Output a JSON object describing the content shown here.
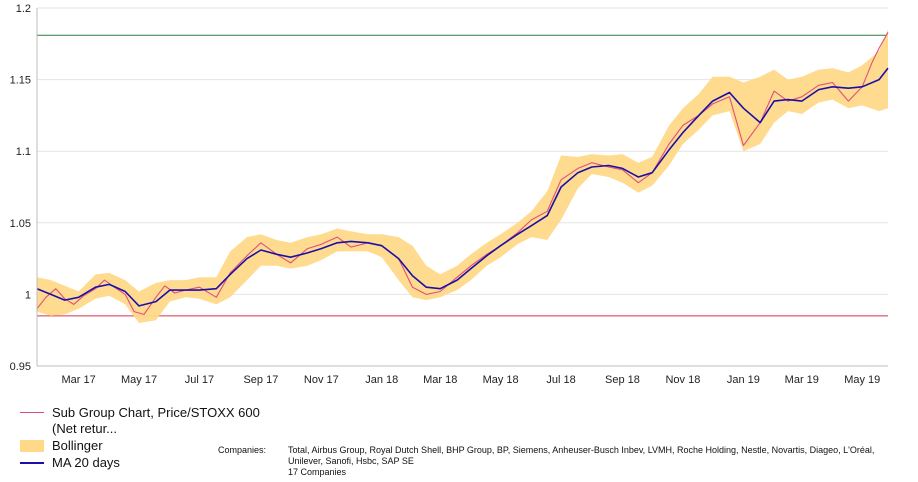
{
  "chart_data": {
    "type": "line",
    "title": "",
    "xlabel": "",
    "ylabel": "",
    "ylim": [
      0.95,
      1.2
    ],
    "xlim": [
      "2017-02-01",
      "2019-06-10"
    ],
    "yticks": [
      {
        "value": 0.95,
        "label": "0.95"
      },
      {
        "value": 1.0,
        "label": "1"
      },
      {
        "value": 1.05,
        "label": "1.05"
      },
      {
        "value": 1.1,
        "label": "1.1"
      },
      {
        "value": 1.15,
        "label": "1.15"
      },
      {
        "value": 1.2,
        "label": "1.2"
      }
    ],
    "xticks": [
      {
        "date": "2017-03-15",
        "label": "Mar 17"
      },
      {
        "date": "2017-05-15",
        "label": "May 17"
      },
      {
        "date": "2017-07-15",
        "label": "Jul 17"
      },
      {
        "date": "2017-09-15",
        "label": "Sep 17"
      },
      {
        "date": "2017-11-15",
        "label": "Nov 17"
      },
      {
        "date": "2018-01-15",
        "label": "Jan 18"
      },
      {
        "date": "2018-03-15",
        "label": "Mar 18"
      },
      {
        "date": "2018-05-15",
        "label": "May 18"
      },
      {
        "date": "2018-07-15",
        "label": "Jul 18"
      },
      {
        "date": "2018-09-15",
        "label": "Sep 18"
      },
      {
        "date": "2018-11-15",
        "label": "Nov 18"
      },
      {
        "date": "2019-01-15",
        "label": "Jan 19"
      },
      {
        "date": "2019-03-15",
        "label": "Mar 19"
      },
      {
        "date": "2019-05-15",
        "label": "May 19"
      }
    ],
    "grid": true,
    "reference_lines": [
      {
        "value": 1.181,
        "color": "#2e7d3a"
      },
      {
        "value": 0.985,
        "color": "#d9304a"
      }
    ],
    "series": [
      {
        "name": "Sub Group Chart, Price/STOXX 600 (Net retur...",
        "legend_label": "Sub Group Chart, Price/STOXX 600 (Net retur...",
        "color": "#e0507a",
        "type": "line",
        "points": [
          [
            "2017-02-01",
            0.99
          ],
          [
            "2017-02-10",
            0.998
          ],
          [
            "2017-02-20",
            1.004
          ],
          [
            "2017-03-01",
            0.997
          ],
          [
            "2017-03-10",
            0.993
          ],
          [
            "2017-03-20",
            0.999
          ],
          [
            "2017-04-01",
            1.004
          ],
          [
            "2017-04-10",
            1.01
          ],
          [
            "2017-04-20",
            1.005
          ],
          [
            "2017-05-01",
            1.0
          ],
          [
            "2017-05-10",
            0.988
          ],
          [
            "2017-05-20",
            0.986
          ],
          [
            "2017-06-01",
            0.998
          ],
          [
            "2017-06-10",
            1.006
          ],
          [
            "2017-06-20",
            1.001
          ],
          [
            "2017-07-01",
            1.003
          ],
          [
            "2017-07-15",
            1.005
          ],
          [
            "2017-08-01",
            0.998
          ],
          [
            "2017-08-15",
            1.015
          ],
          [
            "2017-09-01",
            1.027
          ],
          [
            "2017-09-15",
            1.036
          ],
          [
            "2017-10-01",
            1.028
          ],
          [
            "2017-10-15",
            1.022
          ],
          [
            "2017-11-01",
            1.032
          ],
          [
            "2017-11-15",
            1.035
          ],
          [
            "2017-12-01",
            1.04
          ],
          [
            "2017-12-15",
            1.033
          ],
          [
            "2018-01-01",
            1.036
          ],
          [
            "2018-01-15",
            1.034
          ],
          [
            "2018-02-01",
            1.025
          ],
          [
            "2018-02-15",
            1.005
          ],
          [
            "2018-03-01",
            1.0
          ],
          [
            "2018-03-15",
            1.002
          ],
          [
            "2018-04-01",
            1.012
          ],
          [
            "2018-04-15",
            1.02
          ],
          [
            "2018-05-01",
            1.028
          ],
          [
            "2018-05-15",
            1.034
          ],
          [
            "2018-06-01",
            1.043
          ],
          [
            "2018-06-15",
            1.052
          ],
          [
            "2018-07-01",
            1.058
          ],
          [
            "2018-07-15",
            1.08
          ],
          [
            "2018-08-01",
            1.088
          ],
          [
            "2018-08-15",
            1.092
          ],
          [
            "2018-09-01",
            1.089
          ],
          [
            "2018-09-15",
            1.087
          ],
          [
            "2018-10-01",
            1.078
          ],
          [
            "2018-10-15",
            1.085
          ],
          [
            "2018-11-01",
            1.105
          ],
          [
            "2018-11-15",
            1.118
          ],
          [
            "2018-12-01",
            1.125
          ],
          [
            "2018-12-15",
            1.133
          ],
          [
            "2019-01-01",
            1.138
          ],
          [
            "2019-01-15",
            1.104
          ],
          [
            "2019-02-01",
            1.12
          ],
          [
            "2019-02-15",
            1.142
          ],
          [
            "2019-03-01",
            1.135
          ],
          [
            "2019-03-15",
            1.138
          ],
          [
            "2019-04-01",
            1.146
          ],
          [
            "2019-04-15",
            1.148
          ],
          [
            "2019-05-01",
            1.135
          ],
          [
            "2019-05-15",
            1.145
          ],
          [
            "2019-05-25",
            1.162
          ],
          [
            "2019-06-01",
            1.172
          ],
          [
            "2019-06-10",
            1.183
          ]
        ]
      },
      {
        "name": "Bollinger",
        "legend_label": "Bollinger",
        "color": "#ffd98a",
        "type": "band",
        "points": [
          [
            "2017-02-01",
            0.988,
            1.012
          ],
          [
            "2017-02-15",
            0.985,
            1.01
          ],
          [
            "2017-03-01",
            0.986,
            1.006
          ],
          [
            "2017-03-15",
            0.99,
            1.002
          ],
          [
            "2017-04-01",
            0.997,
            1.014
          ],
          [
            "2017-04-15",
            0.999,
            1.015
          ],
          [
            "2017-05-01",
            0.993,
            1.01
          ],
          [
            "2017-05-15",
            0.98,
            1.002
          ],
          [
            "2017-06-01",
            0.982,
            1.008
          ],
          [
            "2017-06-15",
            0.995,
            1.01
          ],
          [
            "2017-07-01",
            0.998,
            1.01
          ],
          [
            "2017-07-15",
            0.997,
            1.012
          ],
          [
            "2017-08-01",
            0.993,
            1.012
          ],
          [
            "2017-08-15",
            0.998,
            1.03
          ],
          [
            "2017-09-01",
            1.01,
            1.04
          ],
          [
            "2017-09-15",
            1.02,
            1.042
          ],
          [
            "2017-10-01",
            1.02,
            1.038
          ],
          [
            "2017-10-15",
            1.018,
            1.036
          ],
          [
            "2017-11-01",
            1.02,
            1.04
          ],
          [
            "2017-11-15",
            1.024,
            1.042
          ],
          [
            "2017-12-01",
            1.03,
            1.046
          ],
          [
            "2017-12-15",
            1.03,
            1.044
          ],
          [
            "2018-01-01",
            1.03,
            1.042
          ],
          [
            "2018-01-15",
            1.026,
            1.042
          ],
          [
            "2018-02-01",
            1.01,
            1.04
          ],
          [
            "2018-02-15",
            0.998,
            1.034
          ],
          [
            "2018-03-01",
            0.996,
            1.02
          ],
          [
            "2018-03-15",
            0.998,
            1.014
          ],
          [
            "2018-04-01",
            1.003,
            1.02
          ],
          [
            "2018-04-15",
            1.01,
            1.028
          ],
          [
            "2018-05-01",
            1.02,
            1.036
          ],
          [
            "2018-05-15",
            1.026,
            1.042
          ],
          [
            "2018-06-01",
            1.035,
            1.05
          ],
          [
            "2018-06-15",
            1.04,
            1.058
          ],
          [
            "2018-07-01",
            1.038,
            1.072
          ],
          [
            "2018-07-15",
            1.052,
            1.097
          ],
          [
            "2018-08-01",
            1.074,
            1.096
          ],
          [
            "2018-08-15",
            1.084,
            1.098
          ],
          [
            "2018-09-01",
            1.082,
            1.097
          ],
          [
            "2018-09-15",
            1.078,
            1.098
          ],
          [
            "2018-10-01",
            1.071,
            1.092
          ],
          [
            "2018-10-15",
            1.076,
            1.096
          ],
          [
            "2018-11-01",
            1.09,
            1.118
          ],
          [
            "2018-11-15",
            1.105,
            1.13
          ],
          [
            "2018-12-01",
            1.115,
            1.14
          ],
          [
            "2018-12-15",
            1.125,
            1.152
          ],
          [
            "2019-01-01",
            1.128,
            1.152
          ],
          [
            "2019-01-15",
            1.1,
            1.148
          ],
          [
            "2019-02-01",
            1.105,
            1.152
          ],
          [
            "2019-02-15",
            1.12,
            1.157
          ],
          [
            "2019-03-01",
            1.128,
            1.15
          ],
          [
            "2019-03-15",
            1.126,
            1.152
          ],
          [
            "2019-04-01",
            1.134,
            1.157
          ],
          [
            "2019-04-15",
            1.136,
            1.158
          ],
          [
            "2019-05-01",
            1.13,
            1.155
          ],
          [
            "2019-05-15",
            1.132,
            1.16
          ],
          [
            "2019-06-01",
            1.128,
            1.17
          ],
          [
            "2019-06-10",
            1.13,
            1.185
          ]
        ]
      },
      {
        "name": "MA 20 days",
        "legend_label": "MA 20 days",
        "color": "#1a10a8",
        "type": "line",
        "points": [
          [
            "2017-02-01",
            1.004
          ],
          [
            "2017-02-15",
            1.0
          ],
          [
            "2017-03-01",
            0.996
          ],
          [
            "2017-03-15",
            0.998
          ],
          [
            "2017-04-01",
            1.005
          ],
          [
            "2017-04-15",
            1.007
          ],
          [
            "2017-05-01",
            1.002
          ],
          [
            "2017-05-15",
            0.992
          ],
          [
            "2017-06-01",
            0.995
          ],
          [
            "2017-06-15",
            1.003
          ],
          [
            "2017-07-01",
            1.003
          ],
          [
            "2017-07-15",
            1.003
          ],
          [
            "2017-08-01",
            1.004
          ],
          [
            "2017-08-15",
            1.014
          ],
          [
            "2017-09-01",
            1.025
          ],
          [
            "2017-09-15",
            1.031
          ],
          [
            "2017-10-01",
            1.028
          ],
          [
            "2017-10-15",
            1.026
          ],
          [
            "2017-11-01",
            1.029
          ],
          [
            "2017-11-15",
            1.032
          ],
          [
            "2017-12-01",
            1.036
          ],
          [
            "2017-12-15",
            1.037
          ],
          [
            "2018-01-01",
            1.036
          ],
          [
            "2018-01-15",
            1.034
          ],
          [
            "2018-02-01",
            1.025
          ],
          [
            "2018-02-15",
            1.013
          ],
          [
            "2018-03-01",
            1.005
          ],
          [
            "2018-03-15",
            1.004
          ],
          [
            "2018-04-01",
            1.01
          ],
          [
            "2018-04-15",
            1.018
          ],
          [
            "2018-05-01",
            1.027
          ],
          [
            "2018-05-15",
            1.034
          ],
          [
            "2018-06-01",
            1.042
          ],
          [
            "2018-06-15",
            1.048
          ],
          [
            "2018-07-01",
            1.055
          ],
          [
            "2018-07-15",
            1.075
          ],
          [
            "2018-08-01",
            1.085
          ],
          [
            "2018-08-15",
            1.089
          ],
          [
            "2018-09-01",
            1.09
          ],
          [
            "2018-09-15",
            1.088
          ],
          [
            "2018-10-01",
            1.082
          ],
          [
            "2018-10-15",
            1.085
          ],
          [
            "2018-11-01",
            1.101
          ],
          [
            "2018-11-15",
            1.113
          ],
          [
            "2018-12-01",
            1.125
          ],
          [
            "2018-12-15",
            1.135
          ],
          [
            "2019-01-01",
            1.141
          ],
          [
            "2019-01-15",
            1.13
          ],
          [
            "2019-02-01",
            1.12
          ],
          [
            "2019-02-15",
            1.135
          ],
          [
            "2019-03-01",
            1.136
          ],
          [
            "2019-03-15",
            1.135
          ],
          [
            "2019-04-01",
            1.143
          ],
          [
            "2019-04-15",
            1.145
          ],
          [
            "2019-05-01",
            1.144
          ],
          [
            "2019-05-15",
            1.145
          ],
          [
            "2019-06-01",
            1.15
          ],
          [
            "2019-06-10",
            1.158
          ]
        ]
      }
    ]
  },
  "legend": {
    "items": [
      {
        "label": "Sub Group Chart, Price/STOXX 600 (Net retur..."
      },
      {
        "label": "Bollinger"
      },
      {
        "label": "MA 20 days"
      }
    ]
  },
  "companies": {
    "label": "Companies:",
    "list": "Total, Airbus Group, Royal Dutch Shell, BHP Group, BP, Siemens, Anheuser-Busch Inbev, LVMH, Roche Holding, Nestle, Novartis, Diageo, L'Oréal, Unilever, Sanofi, Hsbc, SAP SE",
    "count": "17 Companies"
  }
}
